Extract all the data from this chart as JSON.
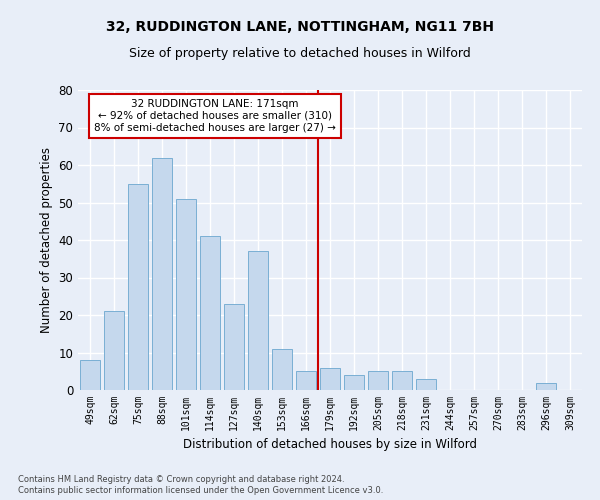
{
  "title1": "32, RUDDINGTON LANE, NOTTINGHAM, NG11 7BH",
  "title2": "Size of property relative to detached houses in Wilford",
  "xlabel": "Distribution of detached houses by size in Wilford",
  "ylabel": "Number of detached properties",
  "categories": [
    "49sqm",
    "62sqm",
    "75sqm",
    "88sqm",
    "101sqm",
    "114sqm",
    "127sqm",
    "140sqm",
    "153sqm",
    "166sqm",
    "179sqm",
    "192sqm",
    "205sqm",
    "218sqm",
    "231sqm",
    "244sqm",
    "257sqm",
    "270sqm",
    "283sqm",
    "296sqm",
    "309sqm"
  ],
  "values": [
    8,
    21,
    55,
    62,
    51,
    41,
    23,
    37,
    11,
    5,
    6,
    4,
    5,
    5,
    3,
    0,
    0,
    0,
    0,
    2,
    0
  ],
  "bar_color": "#c5d8ed",
  "bar_edge_color": "#7aafd4",
  "vline_x": 9.5,
  "vline_color": "#cc0000",
  "annotation_text": "32 RUDDINGTON LANE: 171sqm\n← 92% of detached houses are smaller (310)\n8% of semi-detached houses are larger (27) →",
  "annotation_box_color": "#cc0000",
  "ylim": [
    0,
    80
  ],
  "yticks": [
    0,
    10,
    20,
    30,
    40,
    50,
    60,
    70,
    80
  ],
  "footer1": "Contains HM Land Registry data © Crown copyright and database right 2024.",
  "footer2": "Contains public sector information licensed under the Open Government Licence v3.0.",
  "bg_color": "#e8eef8",
  "grid_color": "#ffffff",
  "title1_fontsize": 10,
  "title2_fontsize": 9
}
